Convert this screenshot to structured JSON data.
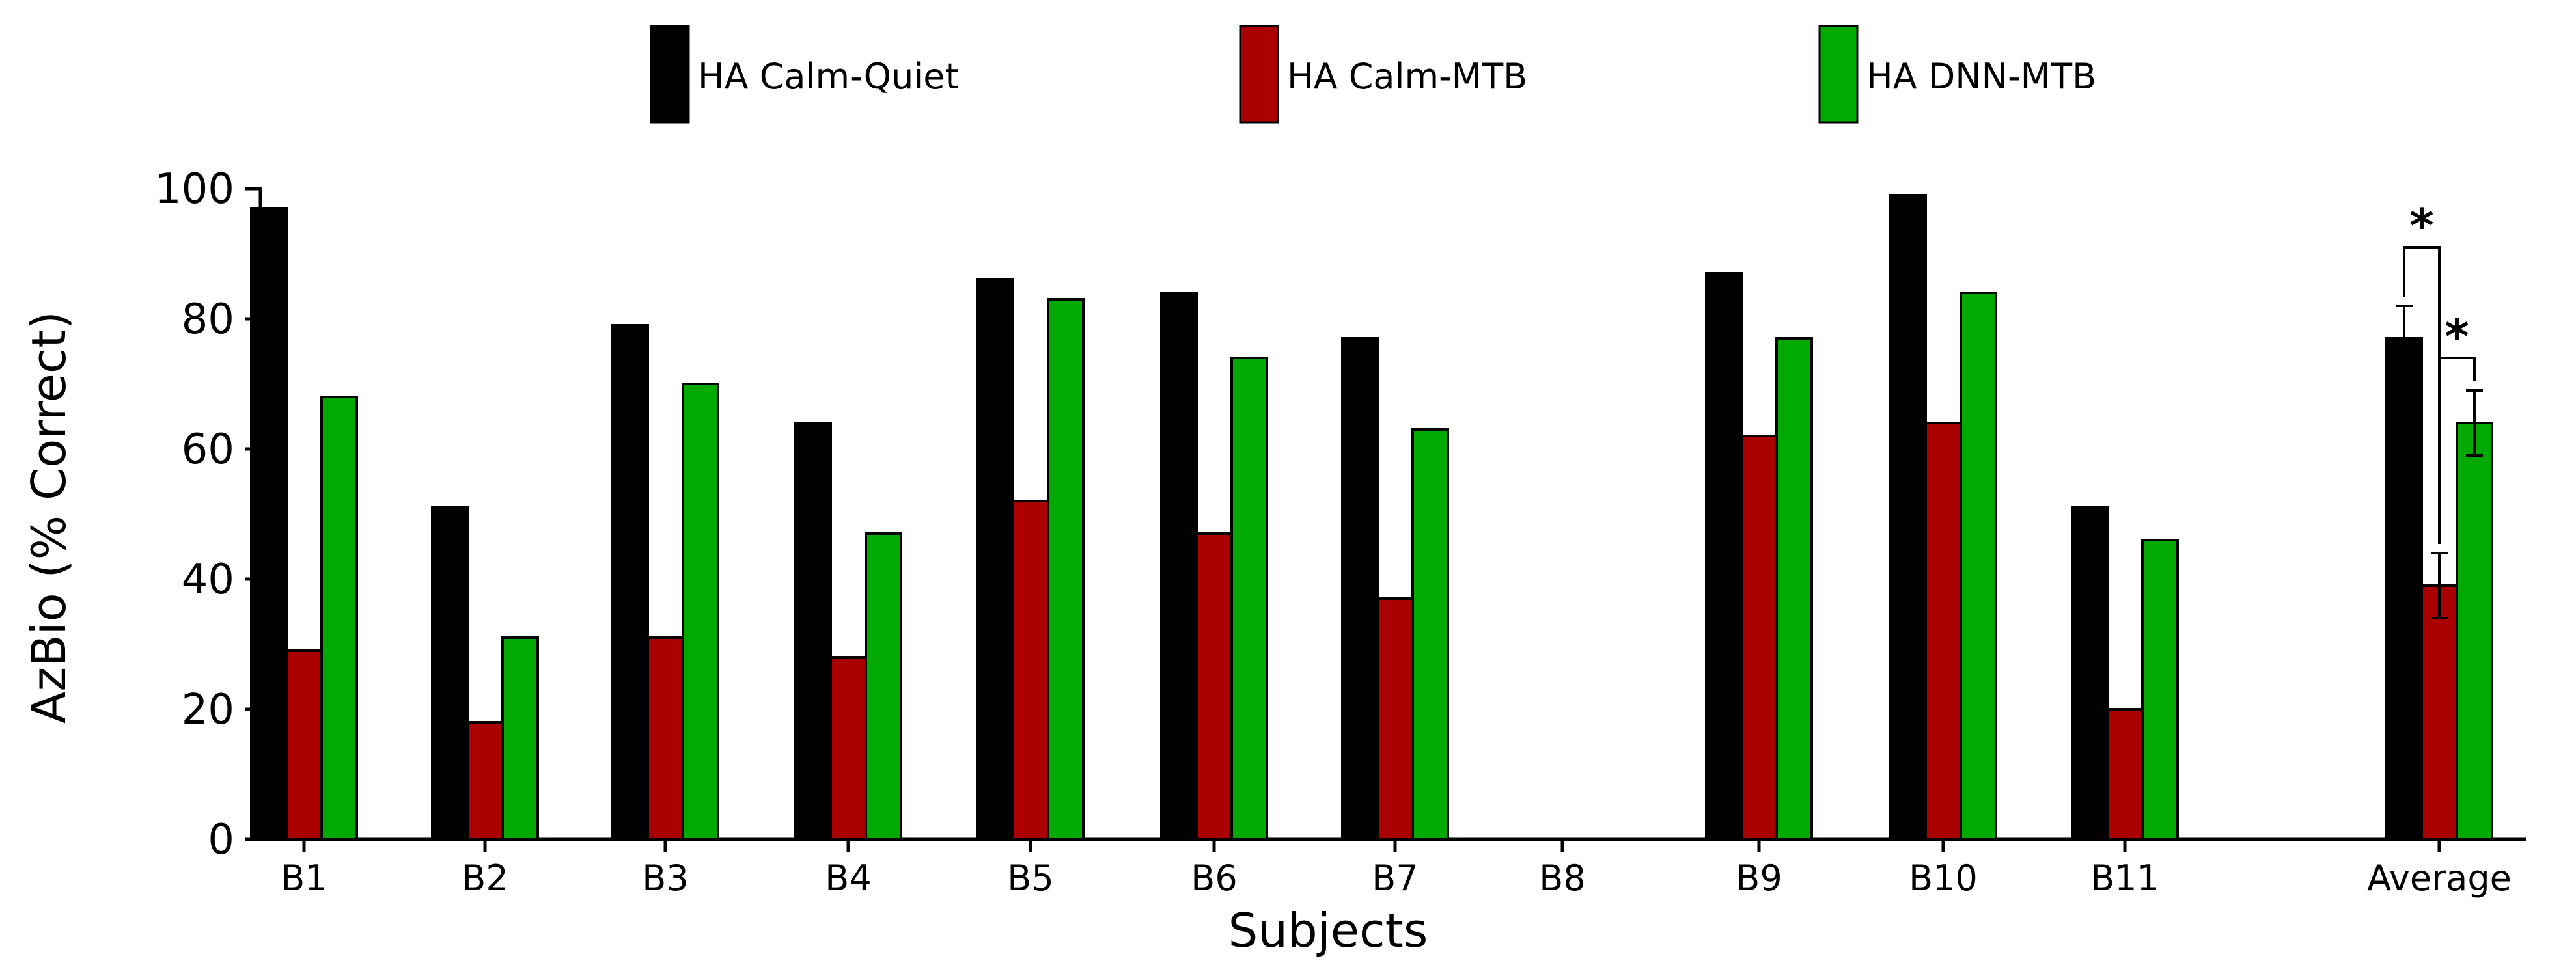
{
  "chart_data": {
    "type": "bar",
    "title": "",
    "xlabel": "Subjects",
    "ylabel": "AzBio (% Correct)",
    "ylim": [
      0,
      100
    ],
    "yticks": [
      0,
      20,
      40,
      60,
      80,
      100
    ],
    "legend_position": "top",
    "categories": [
      "B1",
      "B2",
      "B3",
      "B4",
      "B5",
      "B6",
      "B7",
      "B8",
      "B9",
      "B10",
      "B11",
      "Average"
    ],
    "series": [
      {
        "name": "HA  Calm-Quiet",
        "color": "#000000",
        "values": [
          97,
          51,
          79,
          64,
          86,
          84,
          77,
          null,
          87,
          99,
          51,
          77
        ],
        "error": [
          null,
          null,
          null,
          null,
          null,
          null,
          null,
          null,
          null,
          null,
          null,
          5
        ]
      },
      {
        "name": "HA  Calm-MTB",
        "color": "#aa0000",
        "values": [
          29,
          18,
          31,
          28,
          52,
          47,
          37,
          null,
          62,
          64,
          20,
          39
        ],
        "error": [
          null,
          null,
          null,
          null,
          null,
          null,
          null,
          null,
          null,
          null,
          null,
          5
        ]
      },
      {
        "name": "HA  DNN-MTB",
        "color": "#00aa00",
        "values": [
          68,
          31,
          70,
          47,
          83,
          74,
          63,
          null,
          77,
          84,
          46,
          64
        ],
        "error": [
          null,
          null,
          null,
          null,
          null,
          null,
          null,
          null,
          null,
          null,
          null,
          5
        ]
      }
    ],
    "significance": [
      {
        "category": "Average",
        "between": [
          0,
          1
        ],
        "label": "*"
      },
      {
        "category": "Average",
        "between": [
          1,
          2
        ],
        "label": "*"
      }
    ]
  }
}
